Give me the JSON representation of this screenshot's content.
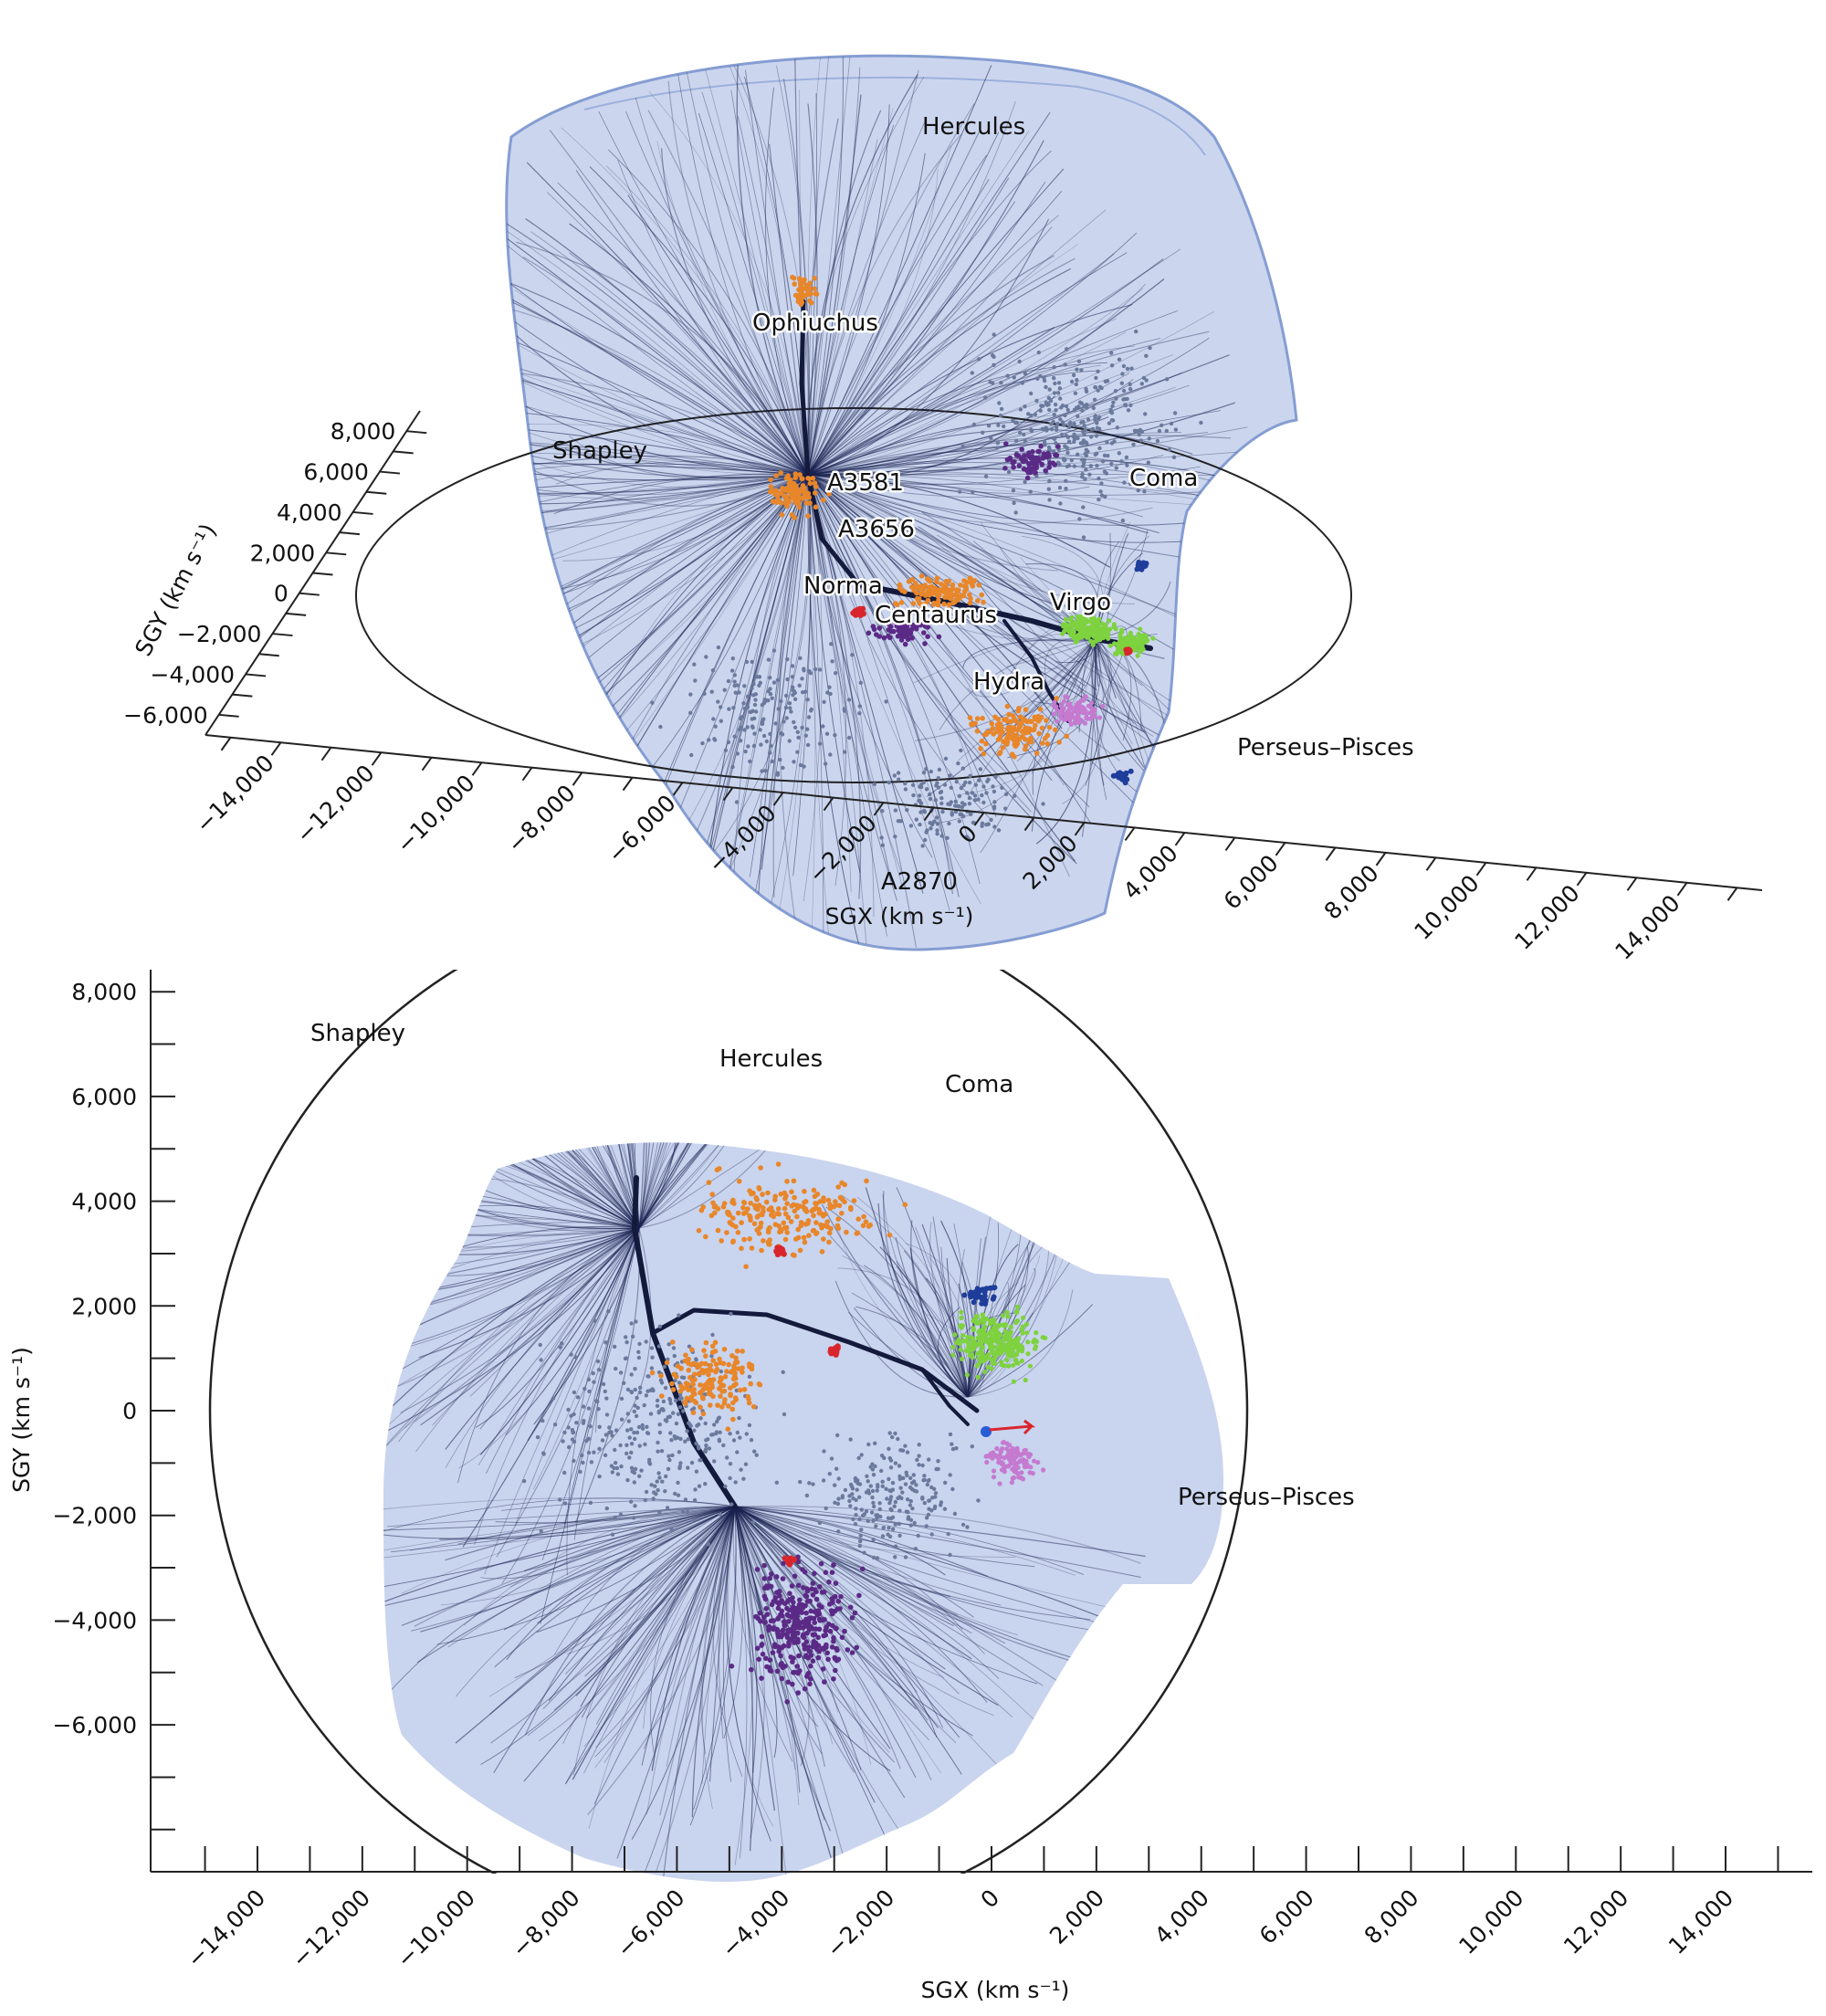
{
  "chart_data": [
    {
      "type": "scatter",
      "view": "3d-perspective",
      "title": "",
      "xlabel": "SGX (km s⁻¹)",
      "ylabel": "SGY (km s⁻¹)",
      "x_ticks": [
        "−14,000",
        "−12,000",
        "−10,000",
        "−8,000",
        "−6,000",
        "−4,000",
        "−2,000",
        "0",
        "2,000",
        "4,000",
        "6,000",
        "8,000",
        "10,000",
        "12,000",
        "14,000"
      ],
      "y_ticks": [
        "8,000",
        "6,000",
        "4,000",
        "2,000",
        "0",
        "−2,000",
        "−4,000",
        "−6,000"
      ],
      "xlim": [
        -15000,
        15000
      ],
      "ylim": [
        -7000,
        9000
      ],
      "annotations": [
        {
          "text": "Hercules"
        },
        {
          "text": "Ophiuchus"
        },
        {
          "text": "Shapley"
        },
        {
          "text": "A3581"
        },
        {
          "text": "A3656"
        },
        {
          "text": "Coma"
        },
        {
          "text": "Norma"
        },
        {
          "text": "Centaurus"
        },
        {
          "text": "Virgo"
        },
        {
          "text": "Hydra"
        },
        {
          "text": "Perseus–Pisces"
        },
        {
          "text": "A2870"
        }
      ],
      "series": [
        {
          "name": "flow lines",
          "color": "#1a2250"
        },
        {
          "name": "galaxies (grey-blue)",
          "color": "#6b7a9c"
        },
        {
          "name": "galaxies (orange)",
          "color": "#e8862a"
        },
        {
          "name": "galaxies (purple)",
          "color": "#5b2a86"
        },
        {
          "name": "galaxies (green)",
          "color": "#7ed23f"
        },
        {
          "name": "galaxies (pink)",
          "color": "#c57ad0"
        },
        {
          "name": "galaxies (dark blue)",
          "color": "#1f3d9a"
        },
        {
          "name": "galaxies (red)",
          "color": "#d8262c"
        }
      ]
    },
    {
      "type": "scatter",
      "view": "projection SGX-SGY",
      "title": "",
      "xlabel": "SGX (km s⁻¹)",
      "ylabel": "SGY (km s⁻¹)",
      "x_ticks": [
        "−14,000",
        "−12,000",
        "−10,000",
        "−8,000",
        "−6,000",
        "−4,000",
        "−2,000",
        "0",
        "2,000",
        "4,000",
        "6,000",
        "8,000",
        "10,000",
        "12,000",
        "14,000"
      ],
      "y_ticks": [
        "8,000",
        "6,000",
        "4,000",
        "2,000",
        "0",
        "−2,000",
        "−4,000",
        "−6,000"
      ],
      "xlim": [
        -16000,
        16000
      ],
      "ylim": [
        -8800,
        8800
      ],
      "annotations": [
        {
          "text": "Shapley"
        },
        {
          "text": "Hercules"
        },
        {
          "text": "Coma"
        },
        {
          "text": "Perseus–Pisces"
        }
      ],
      "series": [
        {
          "name": "flow lines",
          "color": "#1a2250"
        },
        {
          "name": "galaxies (grey-blue)",
          "color": "#6b7a9c"
        },
        {
          "name": "galaxies (orange)",
          "color": "#e8862a"
        },
        {
          "name": "galaxies (purple)",
          "color": "#5b2a86"
        },
        {
          "name": "galaxies (green)",
          "color": "#7ed23f"
        },
        {
          "name": "galaxies (pink)",
          "color": "#c57ad0"
        },
        {
          "name": "galaxies (dark blue)",
          "color": "#1f3d9a"
        },
        {
          "name": "galaxies (red)",
          "color": "#d8262c"
        }
      ]
    }
  ]
}
